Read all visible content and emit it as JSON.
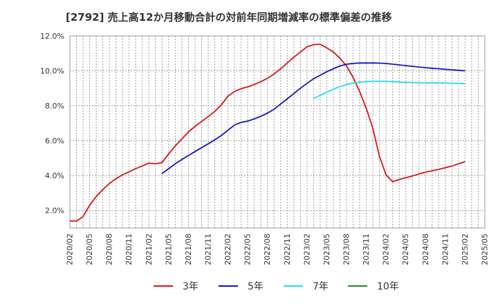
{
  "chart_data": {
    "type": "line",
    "title": "[2792]  売上高12か月移動合計の対前年同期増減率の標準偏差の推移",
    "xlabel": "",
    "ylabel": "",
    "ylim": [
      1.0,
      12.0
    ],
    "yticks": [
      2.0,
      4.0,
      6.0,
      8.0,
      10.0,
      12.0
    ],
    "ytick_labels": [
      "2.0%",
      "4.0%",
      "6.0%",
      "8.0%",
      "10.0%",
      "12.0%"
    ],
    "xtick_labels": [
      "2020/02",
      "2020/05",
      "2020/08",
      "2020/11",
      "2021/02",
      "2021/05",
      "2021/08",
      "2021/11",
      "2022/02",
      "2022/05",
      "2022/08",
      "2022/11",
      "2023/02",
      "2023/05",
      "2023/08",
      "2023/11",
      "2024/02",
      "2024/05",
      "2024/08",
      "2024/11",
      "2025/02",
      "2025/05"
    ],
    "grid": true,
    "legend_position": "bottom",
    "colors": {
      "3年": "#dd1111",
      "5年": "#1111cc",
      "7年": "#22ddee",
      "10年": "#228822"
    },
    "series": [
      {
        "name": "3年",
        "x": [
          "2020/02",
          "2020/03",
          "2020/04",
          "2020/05",
          "2020/06",
          "2020/07",
          "2020/08",
          "2020/09",
          "2020/10",
          "2020/11",
          "2020/12",
          "2021/01",
          "2021/02",
          "2021/03",
          "2021/04",
          "2021/05",
          "2021/06",
          "2021/07",
          "2021/08",
          "2021/09",
          "2021/10",
          "2021/11",
          "2021/12",
          "2022/01",
          "2022/02",
          "2022/03",
          "2022/04",
          "2022/05",
          "2022/06",
          "2022/07",
          "2022/08",
          "2022/09",
          "2022/10",
          "2022/11",
          "2022/12",
          "2023/01",
          "2023/02",
          "2023/03",
          "2023/04",
          "2023/05",
          "2023/06",
          "2023/07",
          "2023/08",
          "2023/09",
          "2023/10",
          "2023/11",
          "2023/12",
          "2024/01",
          "2024/02",
          "2024/03",
          "2024/04",
          "2024/05",
          "2024/06",
          "2024/07",
          "2024/08",
          "2024/09",
          "2024/10",
          "2024/11",
          "2024/12",
          "2025/01",
          "2025/02"
        ],
        "values": [
          1.4,
          1.4,
          1.65,
          2.3,
          2.8,
          3.2,
          3.55,
          3.82,
          4.05,
          4.22,
          4.4,
          4.55,
          4.72,
          4.68,
          4.75,
          5.25,
          5.7,
          6.1,
          6.5,
          6.82,
          7.1,
          7.38,
          7.68,
          8.05,
          8.55,
          8.82,
          8.98,
          9.08,
          9.22,
          9.38,
          9.58,
          9.82,
          10.12,
          10.45,
          10.78,
          11.08,
          11.38,
          11.5,
          11.52,
          11.32,
          11.08,
          10.72,
          10.28,
          9.62,
          8.82,
          7.85,
          6.7,
          5.1,
          4.05,
          3.65,
          3.78,
          3.88,
          3.98,
          4.1,
          4.2,
          4.28,
          4.36,
          4.45,
          4.55,
          4.68,
          4.8
        ]
      },
      {
        "name": "5年",
        "x": [
          "2021/04",
          "2021/05",
          "2021/06",
          "2021/07",
          "2021/08",
          "2021/09",
          "2021/10",
          "2021/11",
          "2021/12",
          "2022/01",
          "2022/02",
          "2022/03",
          "2022/04",
          "2022/05",
          "2022/06",
          "2022/07",
          "2022/08",
          "2022/09",
          "2022/10",
          "2022/11",
          "2022/12",
          "2023/01",
          "2023/02",
          "2023/03",
          "2023/04",
          "2023/05",
          "2023/06",
          "2023/07",
          "2023/08",
          "2023/09",
          "2023/10",
          "2023/11",
          "2023/12",
          "2024/01",
          "2024/02",
          "2024/03",
          "2024/04",
          "2024/05",
          "2024/06",
          "2024/07",
          "2024/08",
          "2024/09",
          "2024/10",
          "2024/11",
          "2024/12",
          "2025/01",
          "2025/02"
        ],
        "values": [
          4.12,
          4.4,
          4.68,
          4.92,
          5.15,
          5.38,
          5.6,
          5.82,
          6.05,
          6.3,
          6.6,
          6.9,
          7.05,
          7.12,
          7.25,
          7.4,
          7.58,
          7.8,
          8.1,
          8.4,
          8.7,
          9.0,
          9.28,
          9.55,
          9.75,
          9.95,
          10.12,
          10.28,
          10.38,
          10.42,
          10.45,
          10.45,
          10.45,
          10.44,
          10.42,
          10.38,
          10.34,
          10.3,
          10.26,
          10.22,
          10.18,
          10.15,
          10.12,
          10.09,
          10.06,
          10.03,
          10.0
        ]
      },
      {
        "name": "7年",
        "x": [
          "2023/03",
          "2023/04",
          "2023/05",
          "2023/06",
          "2023/07",
          "2023/08",
          "2023/09",
          "2023/10",
          "2023/11",
          "2023/12",
          "2024/01",
          "2024/02",
          "2024/03",
          "2024/04",
          "2024/05",
          "2024/06",
          "2024/07",
          "2024/08",
          "2024/09",
          "2024/10",
          "2024/11",
          "2024/12",
          "2025/01",
          "2025/02"
        ],
        "values": [
          8.42,
          8.6,
          8.78,
          8.95,
          9.1,
          9.22,
          9.3,
          9.35,
          9.38,
          9.4,
          9.4,
          9.4,
          9.38,
          9.36,
          9.34,
          9.33,
          9.32,
          9.31,
          9.31,
          9.3,
          9.3,
          9.29,
          9.28,
          9.27
        ]
      },
      {
        "name": "10年",
        "x": [],
        "values": []
      }
    ]
  }
}
